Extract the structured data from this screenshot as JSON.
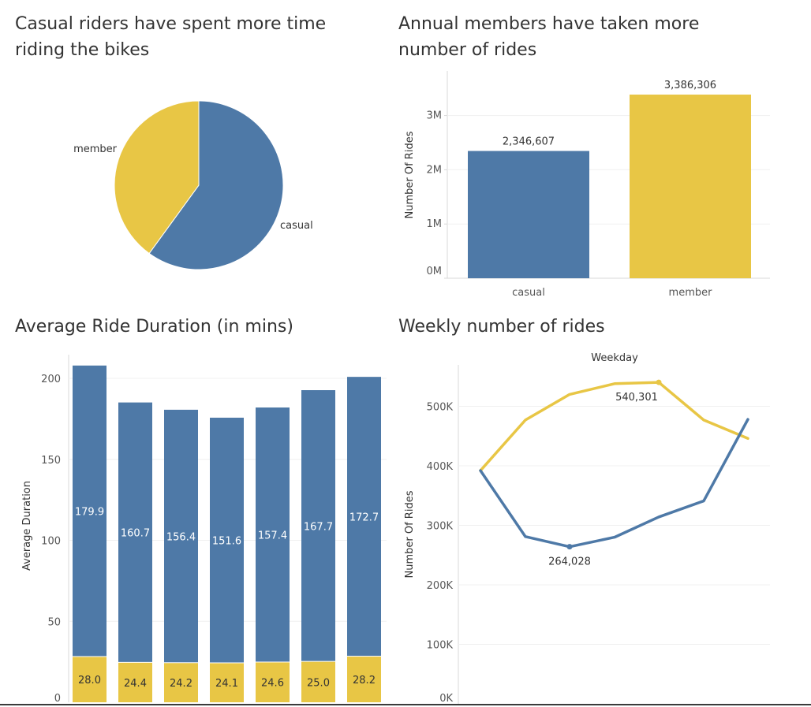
{
  "titles": {
    "pie": "Casual riders have spent more time\nriding the bikes",
    "bar": "Annual members have taken more\nnumber of rides",
    "duration": "Average Ride Duration (in mins)",
    "weekly": "Weekly number of rides"
  },
  "colors": {
    "casual": "#4e79a7",
    "member": "#e8c645"
  },
  "chart_data": [
    {
      "type": "pie",
      "slices": [
        {
          "label": "casual",
          "value": 0.6
        },
        {
          "label": "member",
          "value": 0.4
        }
      ]
    },
    {
      "type": "bar",
      "categories": [
        "casual",
        "member"
      ],
      "values": [
        2346607,
        3386306
      ],
      "value_labels": [
        "2,346,607",
        "3,386,306"
      ],
      "ylabel": "Number Of Rides",
      "ylim": [
        0,
        3600000
      ],
      "yticks": [
        0,
        1000000,
        2000000,
        3000000
      ],
      "ytick_labels": [
        "0M",
        "1M",
        "2M",
        "3M"
      ]
    },
    {
      "type": "bar",
      "stacked": true,
      "ylabel": "Average Duration",
      "ylim": [
        0,
        200
      ],
      "yticks": [
        0,
        50,
        100,
        150,
        200
      ],
      "ytick_labels": [
        "0",
        "50",
        "100",
        "150",
        "200"
      ],
      "series": [
        {
          "name": "member",
          "values": [
            28.0,
            24.4,
            24.2,
            24.1,
            24.6,
            25.0,
            28.2
          ],
          "labels": [
            "28.0",
            "24.4",
            "24.2",
            "24.1",
            "24.6",
            "25.0",
            "28.2"
          ]
        },
        {
          "name": "casual",
          "values": [
            179.9,
            160.7,
            156.4,
            151.6,
            157.4,
            167.7,
            172.7
          ],
          "labels": [
            "179.9",
            "160.7",
            "156.4",
            "151.6",
            "157.4",
            "167.7",
            "172.7"
          ]
        }
      ]
    },
    {
      "type": "line",
      "xlabel": "Weekday",
      "ylabel": "Number Of Rides",
      "ylim": [
        0,
        550000
      ],
      "yticks": [
        0,
        100000,
        200000,
        300000,
        400000,
        500000
      ],
      "ytick_labels": [
        "0K",
        "100K",
        "200K",
        "300K",
        "400K",
        "500K"
      ],
      "series": [
        {
          "name": "member",
          "values": [
            392000,
            477000,
            520000,
            538000,
            540301,
            477000,
            446000
          ]
        },
        {
          "name": "casual",
          "values": [
            392000,
            281000,
            264028,
            280000,
            314000,
            341000,
            478000
          ]
        }
      ],
      "annotations": [
        {
          "series": "member",
          "index": 4,
          "text": "540,301"
        },
        {
          "series": "casual",
          "index": 2,
          "text": "264,028"
        }
      ]
    }
  ]
}
